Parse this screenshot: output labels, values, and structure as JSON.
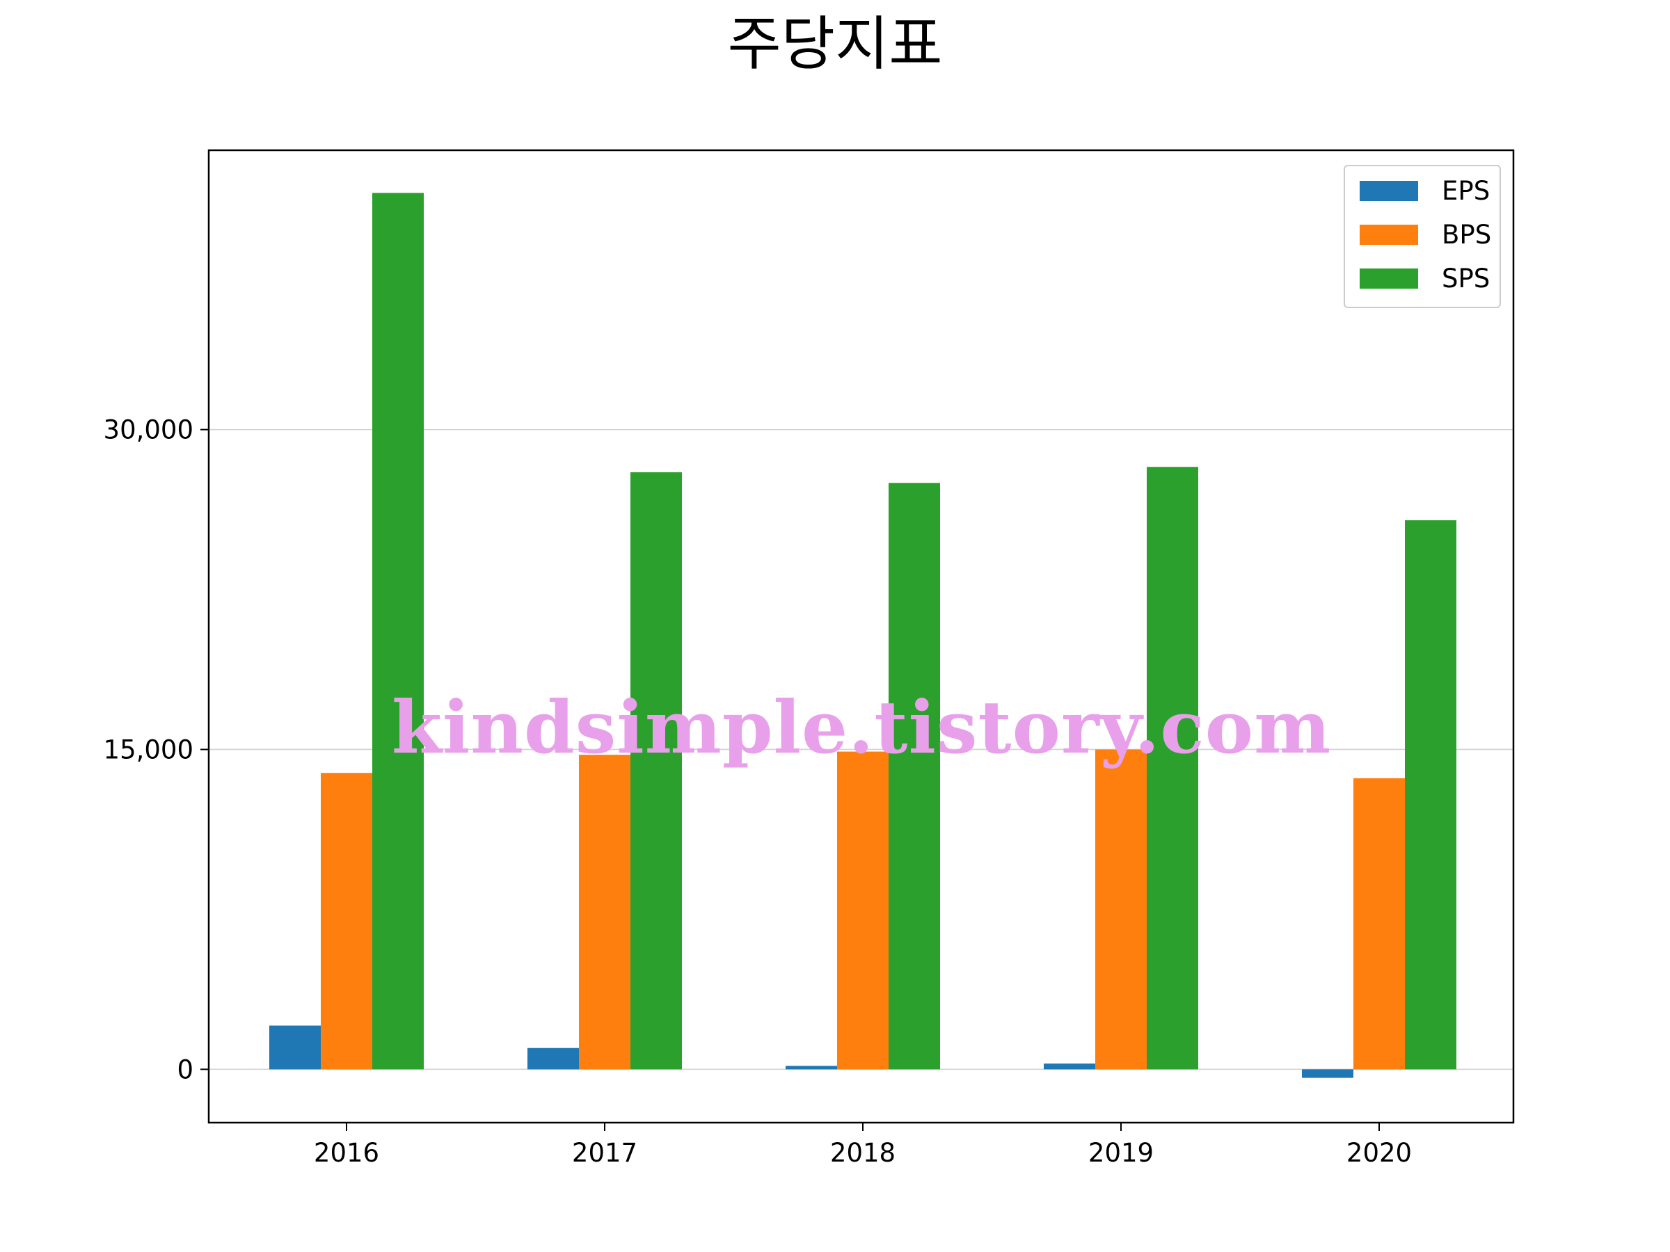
{
  "chart_data": {
    "type": "bar",
    "title": "주당지표",
    "xlabel": "",
    "ylabel": "",
    "categories": [
      "2016",
      "2017",
      "2018",
      "2019",
      "2020"
    ],
    "series": [
      {
        "name": "EPS",
        "color": "#1f77b4",
        "values": [
          2050,
          1000,
          160,
          270,
          -400
        ]
      },
      {
        "name": "BPS",
        "color": "#ff7f0e",
        "values": [
          13900,
          14750,
          14900,
          15000,
          13650
        ]
      },
      {
        "name": "SPS",
        "color": "#2ca02c",
        "values": [
          41100,
          28000,
          27500,
          28250,
          25750
        ]
      }
    ],
    "ylim": [
      -2500,
      43100
    ],
    "yticks": [
      0,
      15000,
      30000
    ],
    "ytick_labels": [
      "0",
      "15,000",
      "30,000"
    ],
    "grid": {
      "y": true,
      "x": false,
      "color": "#d3d3d3"
    },
    "legend_position": "top-right"
  },
  "watermark": "kindsimple.tistory.com"
}
